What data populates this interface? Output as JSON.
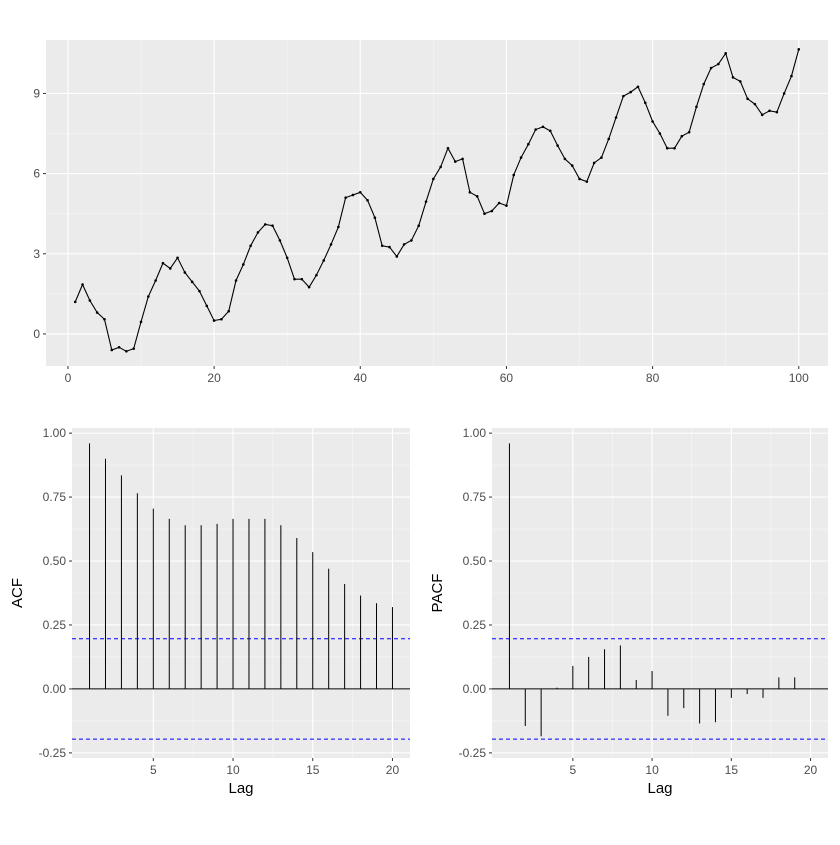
{
  "chart_data": [
    {
      "type": "line",
      "xlim": [
        -3,
        104
      ],
      "ylim": [
        -1.2,
        11.0
      ],
      "x_ticks": [
        "0",
        "20",
        "40",
        "60",
        "80",
        "100"
      ],
      "y_ticks": [
        "0",
        "3",
        "6",
        "9"
      ],
      "xlabel": "",
      "ylabel": "",
      "grid": true,
      "x": [
        1,
        2,
        3,
        4,
        5,
        6,
        7,
        8,
        9,
        10,
        11,
        12,
        13,
        14,
        15,
        16,
        17,
        18,
        19,
        20,
        21,
        22,
        23,
        24,
        25,
        26,
        27,
        28,
        29,
        30,
        31,
        32,
        33,
        34,
        35,
        36,
        37,
        38,
        39,
        40,
        41,
        42,
        43,
        44,
        45,
        46,
        47,
        48,
        49,
        50,
        51,
        52,
        53,
        54,
        55,
        56,
        57,
        58,
        59,
        60,
        61,
        62,
        63,
        64,
        65,
        66,
        67,
        68,
        69,
        70,
        71,
        72,
        73,
        74,
        75,
        76,
        77,
        78,
        79,
        80,
        81,
        82,
        83,
        84,
        85,
        86,
        87,
        88,
        89,
        90,
        91,
        92,
        93,
        94,
        95,
        96,
        97,
        98,
        99,
        100
      ],
      "values": [
        1.2,
        1.85,
        1.25,
        0.8,
        0.55,
        -0.6,
        -0.5,
        -0.65,
        -0.55,
        0.45,
        1.4,
        2.0,
        2.65,
        2.45,
        2.85,
        2.3,
        1.95,
        1.6,
        1.05,
        0.5,
        0.55,
        0.85,
        2.0,
        2.6,
        3.3,
        3.8,
        4.1,
        4.05,
        3.5,
        2.85,
        2.05,
        2.05,
        1.75,
        2.2,
        2.75,
        3.35,
        4.0,
        5.1,
        5.2,
        5.3,
        5.0,
        4.35,
        3.3,
        3.25,
        2.9,
        3.35,
        3.5,
        4.05,
        4.95,
        5.8,
        6.25,
        6.95,
        6.45,
        6.55,
        5.3,
        5.15,
        4.5,
        4.6,
        4.9,
        4.8,
        5.95,
        6.6,
        7.1,
        7.65,
        7.75,
        7.6,
        7.05,
        6.55,
        6.3,
        5.8,
        5.7,
        6.4,
        6.6,
        7.3,
        8.1,
        8.9,
        9.05,
        9.25,
        8.65,
        7.95,
        7.5,
        6.95,
        6.95,
        7.4,
        7.55,
        8.5,
        9.35,
        9.95,
        10.1,
        10.5,
        9.6,
        9.45,
        8.8,
        8.6,
        8.2,
        8.35,
        8.3,
        9.0,
        9.65,
        10.65
      ]
    },
    {
      "type": "bar",
      "xlabel": "Lag",
      "ylabel": "ACF",
      "xlim": [
        -0.1,
        21.1
      ],
      "ylim": [
        -0.27,
        1.02
      ],
      "x_ticks": [
        "5",
        "10",
        "15",
        "20"
      ],
      "y_ticks": [
        "-0.25",
        "0.00",
        "0.25",
        "0.50",
        "0.75",
        "1.00"
      ],
      "confidence_band": 0.196,
      "grid": true,
      "lags": [
        1,
        2,
        3,
        4,
        5,
        6,
        7,
        8,
        9,
        10,
        11,
        12,
        13,
        14,
        15,
        16,
        17,
        18,
        19,
        20
      ],
      "values": [
        0.96,
        0.9,
        0.835,
        0.765,
        0.705,
        0.665,
        0.64,
        0.64,
        0.645,
        0.665,
        0.665,
        0.665,
        0.64,
        0.59,
        0.535,
        0.47,
        0.41,
        0.365,
        0.335,
        0.32
      ]
    },
    {
      "type": "bar",
      "xlabel": "Lag",
      "ylabel": "PACF",
      "xlim": [
        -0.1,
        21.1
      ],
      "ylim": [
        -0.27,
        1.02
      ],
      "x_ticks": [
        "5",
        "10",
        "15",
        "20"
      ],
      "y_ticks": [
        "-0.25",
        "0.00",
        "0.25",
        "0.50",
        "0.75",
        "1.00"
      ],
      "confidence_band": 0.196,
      "grid": true,
      "lags": [
        1,
        2,
        3,
        4,
        5,
        6,
        7,
        8,
        9,
        10,
        11,
        12,
        13,
        14,
        15,
        16,
        17,
        18,
        19
      ],
      "values": [
        0.96,
        -0.145,
        -0.185,
        0.005,
        0.09,
        0.125,
        0.155,
        0.17,
        0.035,
        0.07,
        -0.105,
        -0.075,
        -0.135,
        -0.13,
        -0.035,
        -0.02,
        -0.035,
        0.045,
        0.045
      ]
    }
  ]
}
